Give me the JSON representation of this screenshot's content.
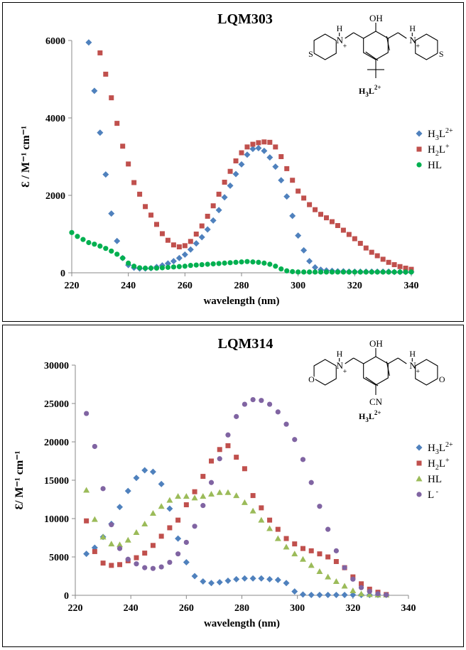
{
  "charts": [
    {
      "type": "scatter",
      "title": "LQM303",
      "xlabel": "wavelength (nm)",
      "ylabel": "Ɛ / M⁻¹ cm⁻¹",
      "xlim": [
        220,
        340
      ],
      "ylim": [
        0,
        6000
      ],
      "xticks": [
        "220",
        "240",
        "260",
        "280",
        "300",
        "320",
        "340"
      ],
      "yticks": [
        "0",
        "2000",
        "4000",
        "6000"
      ],
      "legend_position": "right",
      "structure": {
        "species_label": "H3L2+",
        "para_substituent": "tert-butyl",
        "ring_heteroatom": "S",
        "atoms": {
          "oh": "OH",
          "h_left": "H",
          "h_right": "H",
          "n_left": "N",
          "n_right": "N",
          "plus_left": "+",
          "plus_right": "+",
          "het_left": "S",
          "het_right": "S"
        }
      },
      "series": [
        {
          "name": "H3L2+",
          "label_base": "H",
          "label_sub": "3",
          "label_mid": "L",
          "label_sup": "2+",
          "color": "#4f81bd",
          "marker": "diamond",
          "x": [
            226,
            228,
            230,
            232,
            234,
            236,
            238,
            240,
            242,
            244,
            246,
            248,
            250,
            252,
            254,
            256,
            258,
            260,
            262,
            264,
            266,
            268,
            270,
            272,
            274,
            276,
            278,
            280,
            282,
            284,
            286,
            288,
            290,
            292,
            294,
            296,
            298,
            300,
            302,
            304,
            306,
            308,
            310,
            312,
            314,
            316,
            318,
            320,
            322,
            324,
            326,
            328,
            330,
            332,
            334,
            336,
            338,
            340
          ],
          "y": [
            5950,
            4700,
            3620,
            2540,
            1530,
            820,
            380,
            200,
            130,
            110,
            110,
            120,
            150,
            190,
            240,
            300,
            380,
            470,
            600,
            760,
            920,
            1120,
            1350,
            1620,
            1950,
            2250,
            2550,
            2800,
            3050,
            3200,
            3220,
            3150,
            2980,
            2740,
            2390,
            1970,
            1470,
            960,
            580,
            300,
            140,
            80,
            60,
            50,
            40,
            40,
            30,
            30,
            30,
            30,
            30,
            30,
            30,
            30,
            20,
            20,
            20,
            20
          ]
        },
        {
          "name": "H2L+",
          "label_base": "H",
          "label_sub": "2",
          "label_mid": "L",
          "label_sup": "+",
          "color": "#c0504d",
          "marker": "square",
          "x": [
            230,
            232,
            234,
            236,
            238,
            240,
            242,
            244,
            246,
            248,
            250,
            252,
            254,
            256,
            258,
            260,
            262,
            264,
            266,
            268,
            270,
            272,
            274,
            276,
            278,
            280,
            282,
            284,
            286,
            288,
            290,
            292,
            294,
            296,
            298,
            300,
            302,
            304,
            306,
            308,
            310,
            312,
            314,
            316,
            318,
            320,
            322,
            324,
            326,
            328,
            330,
            332,
            334,
            336,
            338,
            340
          ],
          "y": [
            5680,
            5130,
            4520,
            3860,
            3270,
            2810,
            2330,
            2030,
            1710,
            1490,
            1250,
            1010,
            840,
            720,
            670,
            700,
            810,
            1000,
            1210,
            1460,
            1730,
            2030,
            2340,
            2620,
            2890,
            3100,
            3250,
            3320,
            3360,
            3380,
            3370,
            3250,
            3000,
            2690,
            2390,
            2110,
            1930,
            1760,
            1630,
            1510,
            1420,
            1320,
            1220,
            1100,
            990,
            880,
            760,
            640,
            530,
            440,
            350,
            270,
            210,
            160,
            120,
            90
          ]
        },
        {
          "name": "HL",
          "label_base": "HL",
          "label_sub": "",
          "label_mid": "",
          "label_sup": "",
          "color": "#00b050",
          "marker": "circle",
          "x": [
            220,
            222,
            224,
            226,
            228,
            230,
            232,
            234,
            236,
            238,
            240,
            242,
            244,
            246,
            248,
            250,
            252,
            254,
            256,
            258,
            260,
            262,
            264,
            266,
            268,
            270,
            272,
            274,
            276,
            278,
            280,
            282,
            284,
            286,
            288,
            290,
            292,
            294,
            296,
            298,
            300,
            302,
            304,
            306,
            308,
            310,
            312,
            314,
            316,
            318,
            320,
            322,
            324,
            326,
            328,
            330,
            332,
            334,
            336,
            338,
            340
          ],
          "y": [
            1040,
            940,
            860,
            780,
            740,
            690,
            630,
            560,
            480,
            380,
            250,
            170,
            130,
            120,
            120,
            120,
            130,
            140,
            150,
            160,
            170,
            190,
            200,
            210,
            220,
            230,
            240,
            250,
            260,
            270,
            280,
            290,
            280,
            270,
            250,
            220,
            170,
            100,
            50,
            30,
            20,
            20,
            20,
            20,
            20,
            20,
            20,
            20,
            20,
            20,
            20,
            20,
            20,
            20,
            20,
            20,
            20,
            20,
            20,
            20,
            20
          ]
        }
      ]
    },
    {
      "type": "scatter",
      "title": "LQM314",
      "xlabel": "wavelength  (nm)",
      "ylabel": "Ɛ/ M⁻¹ cm⁻¹",
      "xlim": [
        220,
        340
      ],
      "ylim": [
        0,
        30000
      ],
      "xticks": [
        "220",
        "240",
        "260",
        "280",
        "300",
        "320",
        "340"
      ],
      "yticks": [
        "0",
        "5000",
        "10000",
        "15000",
        "20000",
        "25000",
        "30000"
      ],
      "legend_position": "right",
      "structure": {
        "species_label": "H3L2+",
        "para_substituent": "CN",
        "ring_heteroatom": "O",
        "atoms": {
          "oh": "OH",
          "h_left": "H",
          "h_right": "H",
          "n_left": "N",
          "n_right": "N",
          "plus_left": "+",
          "plus_right": "+",
          "het_left": "O",
          "het_right": "O"
        }
      },
      "series": [
        {
          "name": "H3L2+",
          "label_base": "H",
          "label_sub": "3",
          "label_mid": "L",
          "label_sup": "2+",
          "color": "#4f81bd",
          "marker": "diamond",
          "x": [
            224,
            227,
            230,
            233,
            236,
            239,
            242,
            245,
            248,
            251,
            254,
            257,
            260,
            263,
            266,
            269,
            272,
            275,
            278,
            281,
            284,
            287,
            290,
            293,
            296,
            299,
            302,
            305,
            308,
            311,
            314,
            317,
            320,
            323,
            326,
            329,
            332
          ],
          "y": [
            5400,
            6200,
            7600,
            9300,
            11500,
            13600,
            15300,
            16300,
            16100,
            14500,
            11300,
            7400,
            4300,
            2500,
            1800,
            1600,
            1700,
            1900,
            2100,
            2200,
            2200,
            2200,
            2100,
            2000,
            1600,
            500,
            100,
            50,
            50,
            50,
            50,
            50,
            50,
            50,
            50,
            50,
            50
          ]
        },
        {
          "name": "H2L+",
          "label_base": "H",
          "label_sub": "2",
          "label_mid": "L",
          "label_sup": "+",
          "color": "#c0504d",
          "marker": "square",
          "x": [
            224,
            227,
            230,
            233,
            236,
            239,
            242,
            245,
            248,
            251,
            254,
            257,
            260,
            263,
            266,
            269,
            272,
            275,
            278,
            281,
            284,
            287,
            290,
            293,
            296,
            299,
            302,
            305,
            308,
            311,
            314,
            317,
            320,
            323,
            326,
            329,
            332
          ],
          "y": [
            9700,
            5700,
            4200,
            3900,
            4000,
            4500,
            4900,
            5500,
            6500,
            7700,
            8800,
            9800,
            11800,
            13500,
            15500,
            17500,
            19000,
            19500,
            18000,
            16500,
            13000,
            11400,
            9800,
            8600,
            7400,
            6700,
            6100,
            5800,
            5400,
            5000,
            4400,
            3600,
            2400,
            1500,
            800,
            400,
            100
          ]
        },
        {
          "name": "HL",
          "label_base": "HL",
          "label_sub": "",
          "label_mid": "",
          "label_sup": "",
          "color": "#9bbb59",
          "marker": "triangle",
          "x": [
            224,
            227,
            230,
            233,
            236,
            239,
            242,
            245,
            248,
            251,
            254,
            257,
            260,
            263,
            266,
            269,
            272,
            275,
            278,
            281,
            284,
            287,
            290,
            293,
            296,
            299,
            302,
            305,
            308,
            311,
            314,
            317,
            320,
            323,
            326,
            329,
            332
          ],
          "y": [
            13700,
            9900,
            7600,
            6700,
            6600,
            7200,
            8200,
            9300,
            10700,
            11600,
            12400,
            12900,
            12900,
            12700,
            12900,
            13200,
            13400,
            13400,
            13000,
            12100,
            11000,
            9800,
            8700,
            7400,
            6300,
            5400,
            4700,
            3900,
            3100,
            2400,
            1800,
            1200,
            600,
            200,
            100,
            50,
            50
          ]
        },
        {
          "name": "L -",
          "label_base": "L",
          "label_sub": "",
          "label_mid": "",
          "label_sup": " -",
          "color": "#8064a2",
          "marker": "circle",
          "x": [
            224,
            227,
            230,
            233,
            236,
            239,
            242,
            245,
            248,
            251,
            254,
            257,
            260,
            263,
            266,
            269,
            272,
            275,
            278,
            281,
            284,
            287,
            290,
            293,
            296,
            299,
            302,
            305,
            308,
            311,
            314,
            317,
            320,
            323,
            326,
            329,
            332
          ],
          "y": [
            23700,
            19400,
            13900,
            9200,
            6100,
            4700,
            4100,
            3600,
            3500,
            3700,
            4300,
            5400,
            6900,
            9000,
            11700,
            14700,
            17800,
            20900,
            23300,
            24900,
            25500,
            25400,
            24900,
            23900,
            22300,
            20300,
            17700,
            14700,
            11600,
            8600,
            5800,
            3600,
            2100,
            1000,
            500,
            200,
            50
          ]
        }
      ]
    }
  ]
}
